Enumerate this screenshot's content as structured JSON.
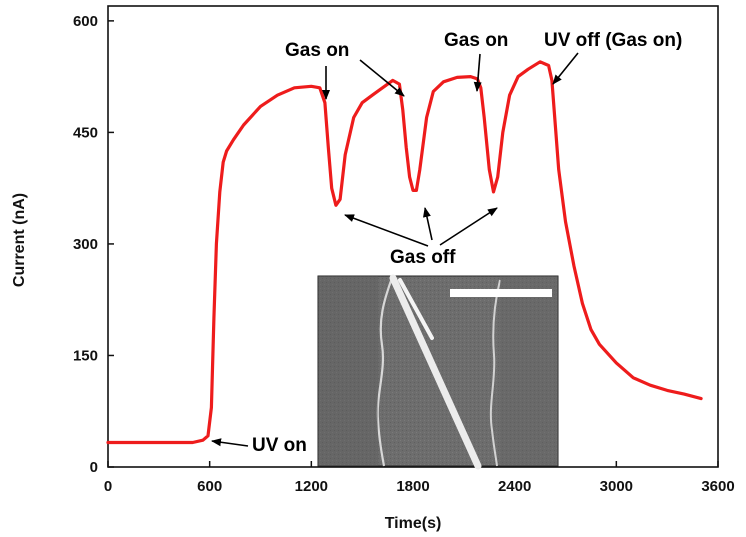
{
  "chart_data": {
    "type": "line",
    "xlabel": "Time(s)",
    "ylabel": "Current (nA)",
    "xlim": [
      0,
      3600
    ],
    "ylim": [
      0,
      620
    ],
    "xticks": [
      0,
      600,
      1200,
      1800,
      2400,
      3000,
      3600
    ],
    "yticks": [
      0,
      150,
      300,
      450,
      600
    ],
    "grid": false,
    "colors": {
      "line": "#ee1c1c",
      "axis": "#111111",
      "inset_bg": "#6b6b6b",
      "scale_bar": "#ffffff"
    },
    "series": [
      {
        "x": [
          0,
          100,
          200,
          300,
          400,
          500,
          560,
          590,
          610,
          625,
          640,
          660,
          680,
          700,
          740,
          800,
          900,
          1000,
          1100,
          1200,
          1250,
          1280,
          1300,
          1320,
          1345,
          1370,
          1400,
          1450,
          1500,
          1560,
          1620,
          1680,
          1720,
          1740,
          1760,
          1780,
          1800,
          1820,
          1840,
          1880,
          1920,
          1980,
          2060,
          2140,
          2180,
          2200,
          2220,
          2250,
          2275,
          2300,
          2330,
          2370,
          2420,
          2480,
          2550,
          2600,
          2620,
          2640,
          2660,
          2700,
          2750,
          2800,
          2850,
          2900,
          3000,
          3100,
          3200,
          3300,
          3400,
          3500
        ],
        "y": [
          33,
          33,
          33,
          33,
          33,
          33,
          36,
          42,
          80,
          200,
          300,
          370,
          410,
          425,
          440,
          460,
          485,
          500,
          510,
          512,
          510,
          490,
          430,
          375,
          352,
          360,
          420,
          470,
          490,
          500,
          510,
          520,
          515,
          480,
          430,
          390,
          372,
          372,
          400,
          470,
          505,
          518,
          524,
          525,
          522,
          510,
          470,
          400,
          370,
          390,
          450,
          500,
          525,
          535,
          545,
          540,
          520,
          460,
          400,
          330,
          270,
          220,
          185,
          165,
          140,
          120,
          110,
          103,
          98,
          92
        ]
      }
    ],
    "annotations": [
      {
        "text": "Gas on",
        "x": 1260,
        "y": 512
      },
      {
        "text": "Gas on",
        "x": 1700,
        "y": 520
      },
      {
        "text": "Gas on",
        "x": 2150,
        "y": 525
      },
      {
        "text": "UV off (Gas on)",
        "x": 2560,
        "y": 545
      },
      {
        "text": "Gas off",
        "x": 1345,
        "y": 352
      },
      {
        "text": "Gas off",
        "x": 1820,
        "y": 372
      },
      {
        "text": "Gas off",
        "x": 2275,
        "y": 370
      },
      {
        "text": "UV on",
        "x": 580,
        "y": 33
      }
    ]
  }
}
